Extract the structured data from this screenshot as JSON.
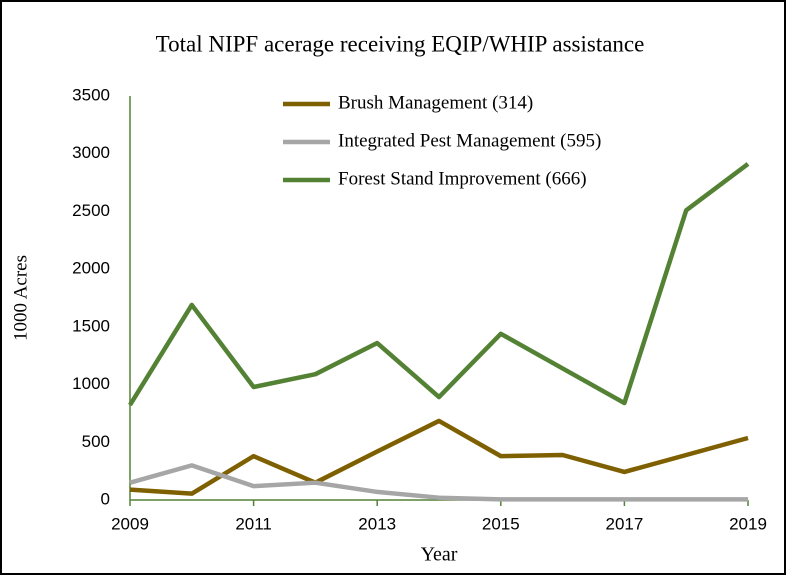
{
  "chart_data": {
    "type": "line",
    "title": "Total NIPF acerage receiving EQIP/WHIP assistance",
    "x_label": "Year",
    "y_label": "1000 Acres",
    "x": [
      2009,
      2010,
      2011,
      2012,
      2013,
      2014,
      2015,
      2016,
      2017,
      2018,
      2019
    ],
    "series": [
      {
        "name": "Brush Management (314)",
        "color": "#7f6000",
        "values": [
          90,
          55,
          380,
          150,
          420,
          685,
          380,
          390,
          243,
          390,
          537
        ]
      },
      {
        "name": "Integrated Pest Management (595)",
        "color": "#a6a6a6",
        "values": [
          150,
          300,
          120,
          150,
          70,
          20,
          5,
          5,
          5,
          5,
          5
        ]
      },
      {
        "name": "Forest Stand Improvement (666)",
        "color": "#548235",
        "values": [
          823,
          1690,
          979,
          1090,
          1360,
          892,
          1440,
          1140,
          840,
          2510,
          2911
        ]
      }
    ],
    "xlim": [
      2009,
      2019
    ],
    "xticks": [
      2009,
      2011,
      2013,
      2015,
      2017,
      2019
    ],
    "ylim": [
      0,
      3500
    ],
    "yticks": [
      0,
      500,
      1000,
      1500,
      2000,
      2500,
      3000,
      3500
    ],
    "legend": "top"
  }
}
